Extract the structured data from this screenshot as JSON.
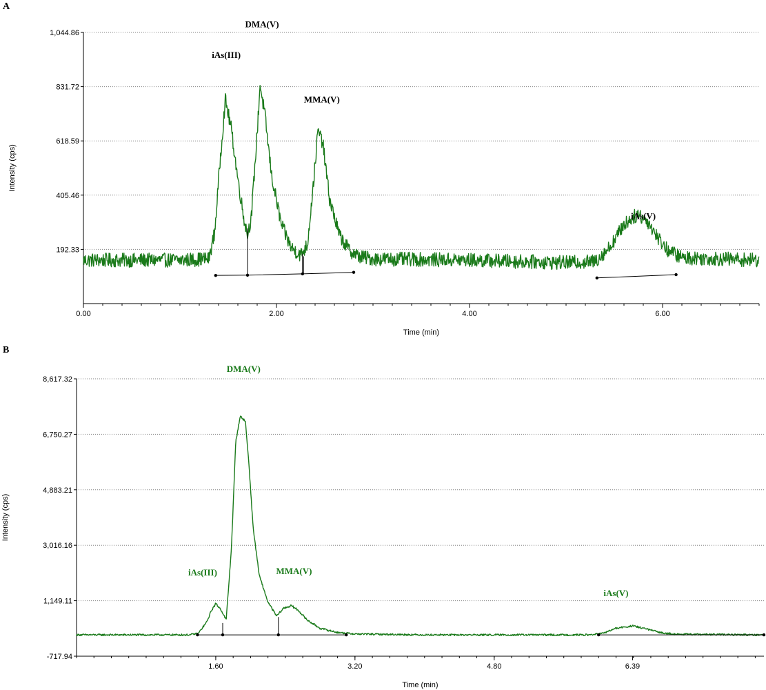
{
  "chart_data": [
    {
      "panel_label": "A",
      "type": "line",
      "xlabel": "Time (min)",
      "ylabel": "Intensity (cps)",
      "xlim": [
        0,
        7.0
      ],
      "ylim": [
        -20.8,
        1044.86
      ],
      "x_ticks": [
        0,
        2,
        4,
        6
      ],
      "x_tick_labels": [
        "0.00",
        "2.00",
        "4.00",
        "6.00"
      ],
      "y_ticks": [
        192.33,
        405.46,
        618.59,
        831.72,
        1044.86
      ],
      "y_tick_labels": [
        "192.33",
        "405.46",
        "618.59",
        "831.72",
        "1,044.86"
      ],
      "grid": "horizontal dotted",
      "line_color": "#1a7a1a",
      "noise_amplitude": 28,
      "series": [
        {
          "x": [
            0,
            0.5,
            1.0,
            1.3,
            1.36,
            1.42,
            1.47,
            1.53,
            1.6,
            1.66,
            1.7,
            1.74,
            1.8,
            1.83,
            1.88,
            1.95,
            2.05,
            2.15,
            2.25,
            2.32,
            2.38,
            2.43,
            2.48,
            2.55,
            2.65,
            2.75,
            2.85,
            3.0,
            4.0,
            5.0,
            5.3,
            5.45,
            5.6,
            5.7,
            5.75,
            5.85,
            5.95,
            6.05,
            6.2,
            7.0
          ],
          "y": [
            150,
            150,
            150,
            155,
            260,
            560,
            780,
            670,
            470,
            320,
            250,
            320,
            650,
            840,
            720,
            480,
            290,
            200,
            170,
            210,
            440,
            660,
            610,
            390,
            250,
            190,
            165,
            155,
            150,
            140,
            145,
            200,
            290,
            320,
            330,
            300,
            240,
            190,
            160,
            150
          ]
        }
      ],
      "integration_baselines": [
        {
          "x": [
            1.37,
            1.7,
            2.27,
            2.8
          ],
          "y": [
            90,
            91,
            96,
            102
          ]
        },
        {
          "x": [
            5.32,
            6.14
          ],
          "y": [
            80,
            93
          ]
        }
      ],
      "peak_drops": [
        {
          "x": 1.7,
          "y_top": 275
        },
        {
          "x": 2.27,
          "y_top": 175
        },
        {
          "x": 2.28,
          "y_top": 165
        }
      ],
      "peak_labels": [
        {
          "text": "DMA(V)",
          "x": 1.85,
          "y": 1065
        },
        {
          "text": "iAs(III)",
          "x": 1.48,
          "y": 945
        },
        {
          "text": "MMA(V)",
          "x": 2.47,
          "y": 770
        },
        {
          "text": "iAs(V)",
          "x": 5.8,
          "y": 312
        }
      ],
      "peak_label_color": "#000000"
    },
    {
      "panel_label": "B",
      "type": "line",
      "xlabel": "Time (min)",
      "ylabel": "Intensity (cps)",
      "xlim": [
        0,
        7.9
      ],
      "ylim": [
        -717.94,
        8617.32
      ],
      "x_ticks": [
        1.6,
        3.2,
        4.8,
        6.39
      ],
      "x_tick_labels": [
        "1.60",
        "3.20",
        "4.80",
        "6.39"
      ],
      "y_ticks": [
        -717.94,
        1149.11,
        3016.16,
        4883.21,
        6750.27,
        8617.32
      ],
      "y_tick_labels": [
        "-717.94",
        "1,149.11",
        "3,016.16",
        "4,883.21",
        "6,750.27",
        "8,617.32"
      ],
      "grid": "horizontal dotted",
      "line_color": "#1a7a1a",
      "noise_amplitude": 35,
      "series": [
        {
          "x": [
            0,
            1.0,
            1.3,
            1.4,
            1.5,
            1.55,
            1.6,
            1.66,
            1.72,
            1.78,
            1.83,
            1.88,
            1.94,
            1.98,
            2.03,
            2.1,
            2.2,
            2.3,
            2.38,
            2.47,
            2.55,
            2.65,
            2.8,
            3.0,
            3.2,
            4.0,
            5.0,
            5.9,
            6.05,
            6.2,
            6.39,
            6.55,
            6.7,
            6.9,
            7.9
          ],
          "y": [
            0,
            0,
            0,
            50,
            450,
            820,
            1050,
            850,
            500,
            2900,
            6500,
            7350,
            7200,
            5800,
            3600,
            2000,
            1100,
            630,
            900,
            980,
            820,
            500,
            220,
            80,
            30,
            0,
            0,
            0,
            50,
            220,
            300,
            200,
            80,
            20,
            0
          ]
        }
      ],
      "integration_baselines": [
        {
          "x": [
            1.39,
            1.68,
            2.32,
            3.1
          ],
          "y": [
            0,
            0,
            0,
            0
          ]
        },
        {
          "x": [
            6.0,
            7.9
          ],
          "y": [
            0,
            0
          ]
        }
      ],
      "peak_drops": [
        {
          "x": 1.68,
          "y_top": 400
        },
        {
          "x": 2.32,
          "y_top": 600
        }
      ],
      "peak_labels": [
        {
          "text": "DMA(V)",
          "x": 1.92,
          "y": 8850
        },
        {
          "text": "iAs(III)",
          "x": 1.45,
          "y": 2000
        },
        {
          "text": "MMA(V)",
          "x": 2.5,
          "y": 2050
        },
        {
          "text": "iAs(V)",
          "x": 6.2,
          "y": 1300
        }
      ],
      "peak_label_color": "#1a7a1a"
    }
  ]
}
